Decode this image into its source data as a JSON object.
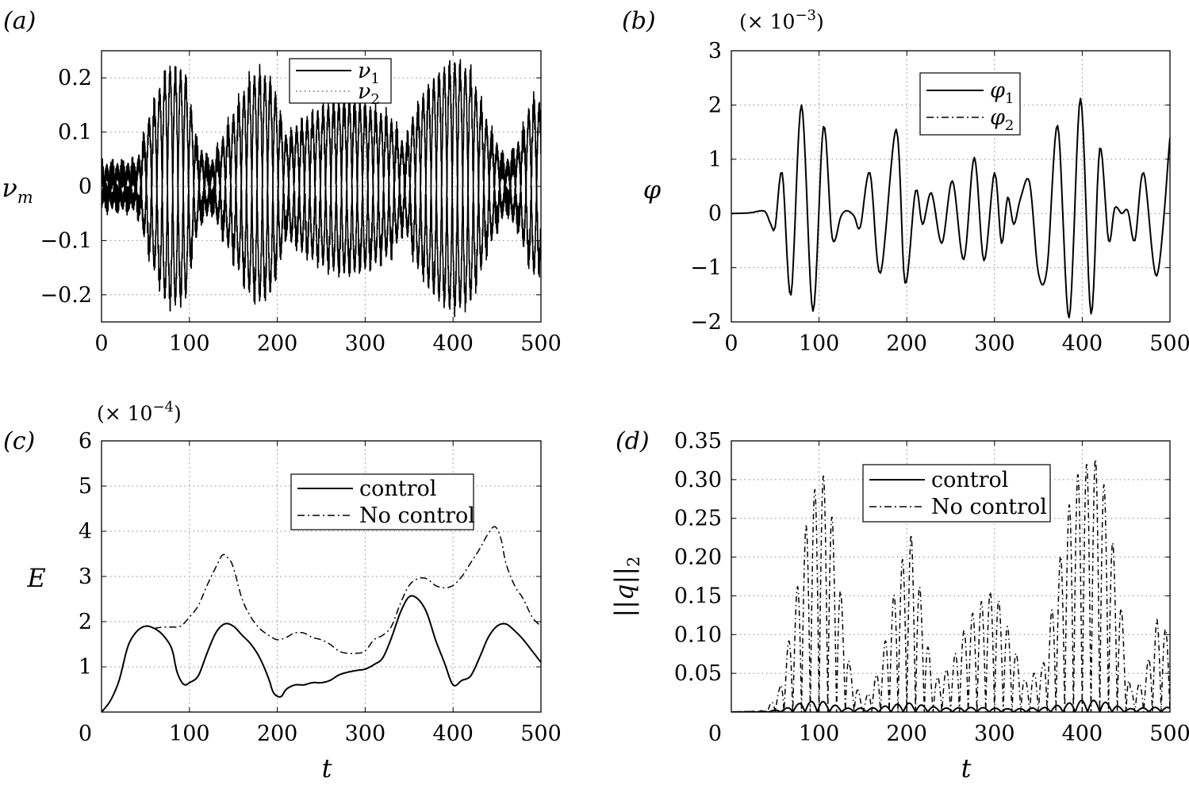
{
  "chart_data": [
    {
      "id": "a",
      "type": "line",
      "panel_label": "(a)",
      "xlabel": "",
      "ylabel": "ν",
      "ylabel_sub": "m",
      "xlim": [
        0,
        500
      ],
      "ylim": [
        -0.25,
        0.25
      ],
      "xticks": [
        "0",
        "100",
        "200",
        "300",
        "400",
        "500"
      ],
      "xtick_values": [
        0,
        100,
        200,
        300,
        400,
        500
      ],
      "yticks": [
        "−0.2",
        "−0.1",
        "0",
        "0.1",
        "0.2"
      ],
      "ytick_values": [
        -0.2,
        -0.1,
        0,
        0.1,
        0.2
      ],
      "grid": true,
      "legend_position": "top-center",
      "legend": [
        {
          "name": "ν",
          "sub": "1",
          "style": "solid"
        },
        {
          "name": "ν",
          "sub": "2",
          "style": "dotted"
        }
      ],
      "envelope": {
        "x": [
          0,
          40,
          55,
          75,
          95,
          110,
          125,
          150,
          170,
          180,
          195,
          210,
          230,
          260,
          280,
          300,
          330,
          345,
          355,
          370,
          385,
          400,
          420,
          440,
          460,
          475,
          490,
          500
        ],
        "amplitude": [
          0.025,
          0.03,
          0.12,
          0.21,
          0.2,
          0.06,
          0.03,
          0.12,
          0.19,
          0.2,
          0.18,
          0.08,
          0.11,
          0.14,
          0.15,
          0.14,
          0.11,
          0.06,
          0.12,
          0.17,
          0.2,
          0.22,
          0.2,
          0.1,
          0.03,
          0.07,
          0.15,
          0.14
        ]
      },
      "carrier_period": 12
    },
    {
      "id": "b",
      "type": "line",
      "panel_label": "(b)",
      "multiplier": "(× 10",
      "multiplier_exp": "−3",
      "multiplier_close": ")",
      "xlabel": "",
      "ylabel": "φ",
      "xlim": [
        0,
        500
      ],
      "ylim": [
        -2,
        3
      ],
      "xticks": [
        "0",
        "100",
        "200",
        "300",
        "400",
        "500"
      ],
      "xtick_values": [
        0,
        100,
        200,
        300,
        400,
        500
      ],
      "yticks": [
        "−2",
        "−1",
        "0",
        "1",
        "2",
        "3"
      ],
      "ytick_values": [
        -2,
        -1,
        0,
        1,
        2,
        3
      ],
      "grid": true,
      "legend_position": "top-center",
      "legend": [
        {
          "name": "φ",
          "sub": "1",
          "style": "solid"
        },
        {
          "name": "φ",
          "sub": "2",
          "style": "dashdot"
        }
      ],
      "series": [
        {
          "style": "solid",
          "x": [
            0,
            20,
            35,
            40,
            45,
            50,
            58,
            68,
            80,
            93,
            105,
            115,
            125,
            132,
            140,
            147,
            158,
            170,
            188,
            198,
            210,
            218,
            228,
            240,
            252,
            265,
            277,
            288,
            300,
            308,
            315,
            322,
            330,
            340,
            350,
            360,
            372,
            385,
            398,
            410,
            420,
            430,
            437,
            445,
            452,
            460,
            470,
            485,
            500
          ],
          "y": [
            0,
            0.01,
            0.05,
            0,
            -0.2,
            -0.25,
            0.75,
            -1.5,
            2.0,
            -1.8,
            1.6,
            -0.45,
            -0.05,
            0.05,
            -0.05,
            -0.25,
            0.75,
            -1.1,
            1.55,
            -1.28,
            0.42,
            -0.2,
            0.38,
            -0.55,
            0.6,
            -0.85,
            1.03,
            -0.87,
            0.75,
            -0.55,
            0.3,
            -0.2,
            0.3,
            0.57,
            -1.1,
            -1.0,
            1.62,
            -1.92,
            2.12,
            -1.85,
            1.2,
            -0.5,
            0.1,
            0.0,
            0.05,
            -0.5,
            0.75,
            -1.15,
            1.4
          ]
        }
      ]
    },
    {
      "id": "c",
      "type": "line",
      "panel_label": "(c)",
      "multiplier": "(× 10",
      "multiplier_exp": "−4",
      "multiplier_close": ")",
      "xlabel": "t",
      "ylabel": "E",
      "xlim": [
        0,
        500
      ],
      "ylim": [
        0,
        6
      ],
      "xticks": [
        "0",
        "100",
        "200",
        "300",
        "400",
        "500"
      ],
      "xtick_values": [
        0,
        100,
        200,
        300,
        400,
        500
      ],
      "yticks": [
        "1",
        "2",
        "3",
        "4",
        "5",
        "6"
      ],
      "ytick_values": [
        1,
        2,
        3,
        4,
        5,
        6
      ],
      "zero_label": "0",
      "grid": true,
      "legend_position": "top-right",
      "legend": [
        {
          "name": "control",
          "style": "solid"
        },
        {
          "name": "No control",
          "style": "dashdot"
        }
      ],
      "series": [
        {
          "name": "control",
          "style": "solid",
          "x": [
            0,
            10,
            20,
            30,
            40,
            50,
            60,
            70,
            80,
            85,
            90,
            95,
            100,
            110,
            120,
            130,
            140,
            150,
            160,
            170,
            180,
            190,
            195,
            200,
            205,
            210,
            220,
            230,
            240,
            250,
            260,
            270,
            280,
            290,
            300,
            310,
            320,
            330,
            340,
            350,
            360,
            370,
            380,
            390,
            400,
            410,
            420,
            430,
            440,
            450,
            460,
            470,
            480,
            490,
            500
          ],
          "y": [
            0,
            0.25,
            0.7,
            1.45,
            1.78,
            1.9,
            1.85,
            1.7,
            1.4,
            0.95,
            0.7,
            0.6,
            0.65,
            0.8,
            1.3,
            1.75,
            1.95,
            1.9,
            1.7,
            1.5,
            1.2,
            0.75,
            0.45,
            0.35,
            0.35,
            0.5,
            0.6,
            0.6,
            0.65,
            0.65,
            0.7,
            0.82,
            0.88,
            0.92,
            0.95,
            1.05,
            1.2,
            1.65,
            2.2,
            2.55,
            2.5,
            2.2,
            1.6,
            1.1,
            0.6,
            0.7,
            0.8,
            1.2,
            1.65,
            1.9,
            1.95,
            1.8,
            1.6,
            1.35,
            1.1
          ]
        },
        {
          "name": "No control",
          "style": "dashdot",
          "x": [
            60,
            70,
            80,
            90,
            100,
            110,
            120,
            130,
            138,
            145,
            150,
            160,
            170,
            180,
            190,
            200,
            210,
            220,
            230,
            240,
            250,
            260,
            270,
            280,
            290,
            300,
            310,
            320,
            330,
            340,
            350,
            360,
            370,
            380,
            390,
            400,
            410,
            420,
            430,
            440,
            448,
            455,
            460,
            470,
            480,
            490,
            500
          ],
          "y": [
            1.85,
            1.88,
            1.88,
            1.9,
            2.1,
            2.35,
            2.8,
            3.2,
            3.48,
            3.38,
            3.2,
            2.5,
            2.1,
            1.85,
            1.7,
            1.6,
            1.65,
            1.75,
            1.75,
            1.65,
            1.6,
            1.5,
            1.35,
            1.3,
            1.3,
            1.35,
            1.6,
            1.7,
            1.9,
            2.4,
            2.8,
            2.95,
            2.95,
            2.8,
            2.75,
            2.8,
            3.0,
            3.3,
            3.6,
            3.95,
            4.1,
            3.8,
            3.3,
            2.8,
            2.5,
            2.1,
            1.9
          ]
        }
      ]
    },
    {
      "id": "d",
      "type": "line",
      "panel_label": "(d)",
      "xlabel": "t",
      "ylabel": "||q||",
      "ylabel_sub": "2",
      "xlim": [
        0,
        500
      ],
      "ylim": [
        0,
        0.35
      ],
      "xticks": [
        "0",
        "100",
        "200",
        "300",
        "400",
        "500"
      ],
      "xtick_values": [
        0,
        100,
        200,
        300,
        400,
        500
      ],
      "yticks": [
        "0.05",
        "0.10",
        "0.15",
        "0.20",
        "0.25",
        "0.30",
        "0.35"
      ],
      "ytick_values": [
        0.05,
        0.1,
        0.15,
        0.2,
        0.25,
        0.3,
        0.35
      ],
      "zero_label": "0",
      "grid": true,
      "legend_position": "top-center",
      "legend": [
        {
          "name": "control",
          "style": "solid"
        },
        {
          "name": "No control",
          "style": "dashdot"
        }
      ],
      "uncontrolled_envelope": {
        "x": [
          0,
          40,
          55,
          70,
          85,
          100,
          110,
          120,
          135,
          150,
          170,
          190,
          205,
          215,
          230,
          250,
          270,
          290,
          300,
          315,
          335,
          355,
          375,
          390,
          405,
          420,
          440,
          455,
          470,
          485,
          500
        ],
        "peak": [
          0,
          0.002,
          0.03,
          0.12,
          0.24,
          0.31,
          0.3,
          0.2,
          0.06,
          0.01,
          0.06,
          0.18,
          0.23,
          0.16,
          0.04,
          0.06,
          0.12,
          0.15,
          0.16,
          0.11,
          0.04,
          0.06,
          0.2,
          0.3,
          0.32,
          0.33,
          0.18,
          0.03,
          0.04,
          0.12,
          0.1
        ]
      },
      "controlled_envelope": {
        "x": [
          0,
          40,
          60,
          80,
          100,
          130,
          160,
          200,
          240,
          280,
          320,
          360,
          400,
          420,
          450,
          480,
          500
        ],
        "peak": [
          0,
          0.001,
          0.004,
          0.012,
          0.015,
          0.005,
          0.005,
          0.012,
          0.005,
          0.006,
          0.004,
          0.006,
          0.015,
          0.015,
          0.004,
          0.006,
          0.006
        ]
      },
      "carrier_period": 10
    }
  ]
}
